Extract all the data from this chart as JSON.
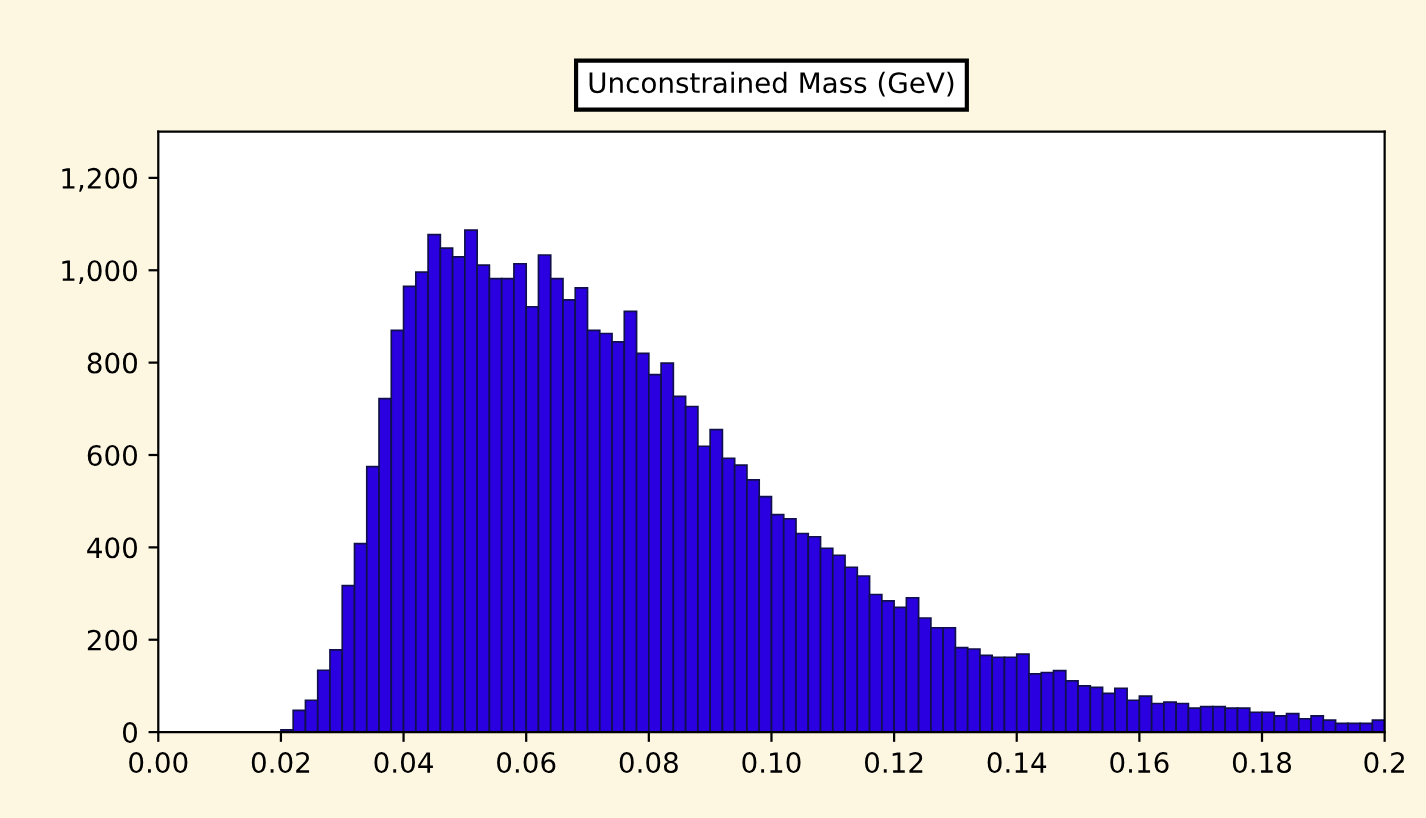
{
  "chart_data": {
    "type": "histogram",
    "title": "Unconstrained Mass (GeV)",
    "bins": [
      0,
      0.002,
      0.004,
      0.006,
      0.008,
      0.01,
      0.012,
      0.014,
      0.016,
      0.018,
      0.02,
      0.022,
      0.024,
      0.026,
      0.028,
      0.03,
      0.032,
      0.034,
      0.036,
      0.038,
      0.04,
      0.042,
      0.044,
      0.046,
      0.048,
      0.05,
      0.052,
      0.054,
      0.056,
      0.058,
      0.06,
      0.062,
      0.064,
      0.066,
      0.068,
      0.07,
      0.072,
      0.074,
      0.076,
      0.078,
      0.08,
      0.082,
      0.084,
      0.086,
      0.088,
      0.09,
      0.092,
      0.094,
      0.096,
      0.098,
      0.1,
      0.102,
      0.104,
      0.106,
      0.108,
      0.11,
      0.112,
      0.114,
      0.116,
      0.118,
      0.12,
      0.122,
      0.124,
      0.126,
      0.128,
      0.13,
      0.132,
      0.134,
      0.136,
      0.138,
      0.14,
      0.142,
      0.144,
      0.146,
      0.148,
      0.15,
      0.152,
      0.154,
      0.156,
      0.158,
      0.16,
      0.162,
      0.164,
      0.166,
      0.168,
      0.17,
      0.172,
      0.174,
      0.176,
      0.178,
      0.18,
      0.182,
      0.184,
      0.186,
      0.188,
      0.19,
      0.192,
      0.194,
      0.196,
      0.198,
      0.2
    ],
    "values": [
      0,
      0,
      0,
      0,
      0,
      0,
      0,
      0,
      0,
      0,
      5,
      47,
      69,
      134,
      178,
      317,
      408,
      575,
      722,
      870,
      965,
      996,
      1077,
      1048,
      1029,
      1087,
      1011,
      982,
      982,
      1014,
      921,
      1033,
      982,
      936,
      962,
      870,
      863,
      845,
      911,
      820,
      774,
      799,
      727,
      705,
      619,
      655,
      593,
      578,
      546,
      510,
      471,
      462,
      430,
      423,
      398,
      383,
      357,
      338,
      298,
      284,
      270,
      291,
      247,
      226,
      226,
      183,
      180,
      166,
      162,
      162,
      169,
      126,
      129,
      133,
      111,
      100,
      97,
      84,
      95,
      69,
      78,
      62,
      65,
      62,
      52,
      55,
      55,
      52,
      52,
      43,
      43,
      35,
      40,
      29,
      35,
      26,
      19,
      19,
      19,
      26
    ],
    "color": "#2a00e0",
    "xlim": [
      0,
      0.2
    ],
    "xticks": [
      {
        "value": 0,
        "label": "0.00"
      },
      0.02,
      0.04,
      0.06,
      0.08,
      {
        "value": 0.1,
        "label": "0.10"
      },
      0.12,
      0.14,
      0.16,
      0.18,
      0.2
    ],
    "ylim": [
      0,
      1300
    ],
    "yticks": [
      0,
      200,
      400,
      600,
      800,
      {
        "value": 1000,
        "label": "1,000"
      },
      {
        "value": 1200,
        "label": "1,200"
      }
    ],
    "grid": false
  }
}
